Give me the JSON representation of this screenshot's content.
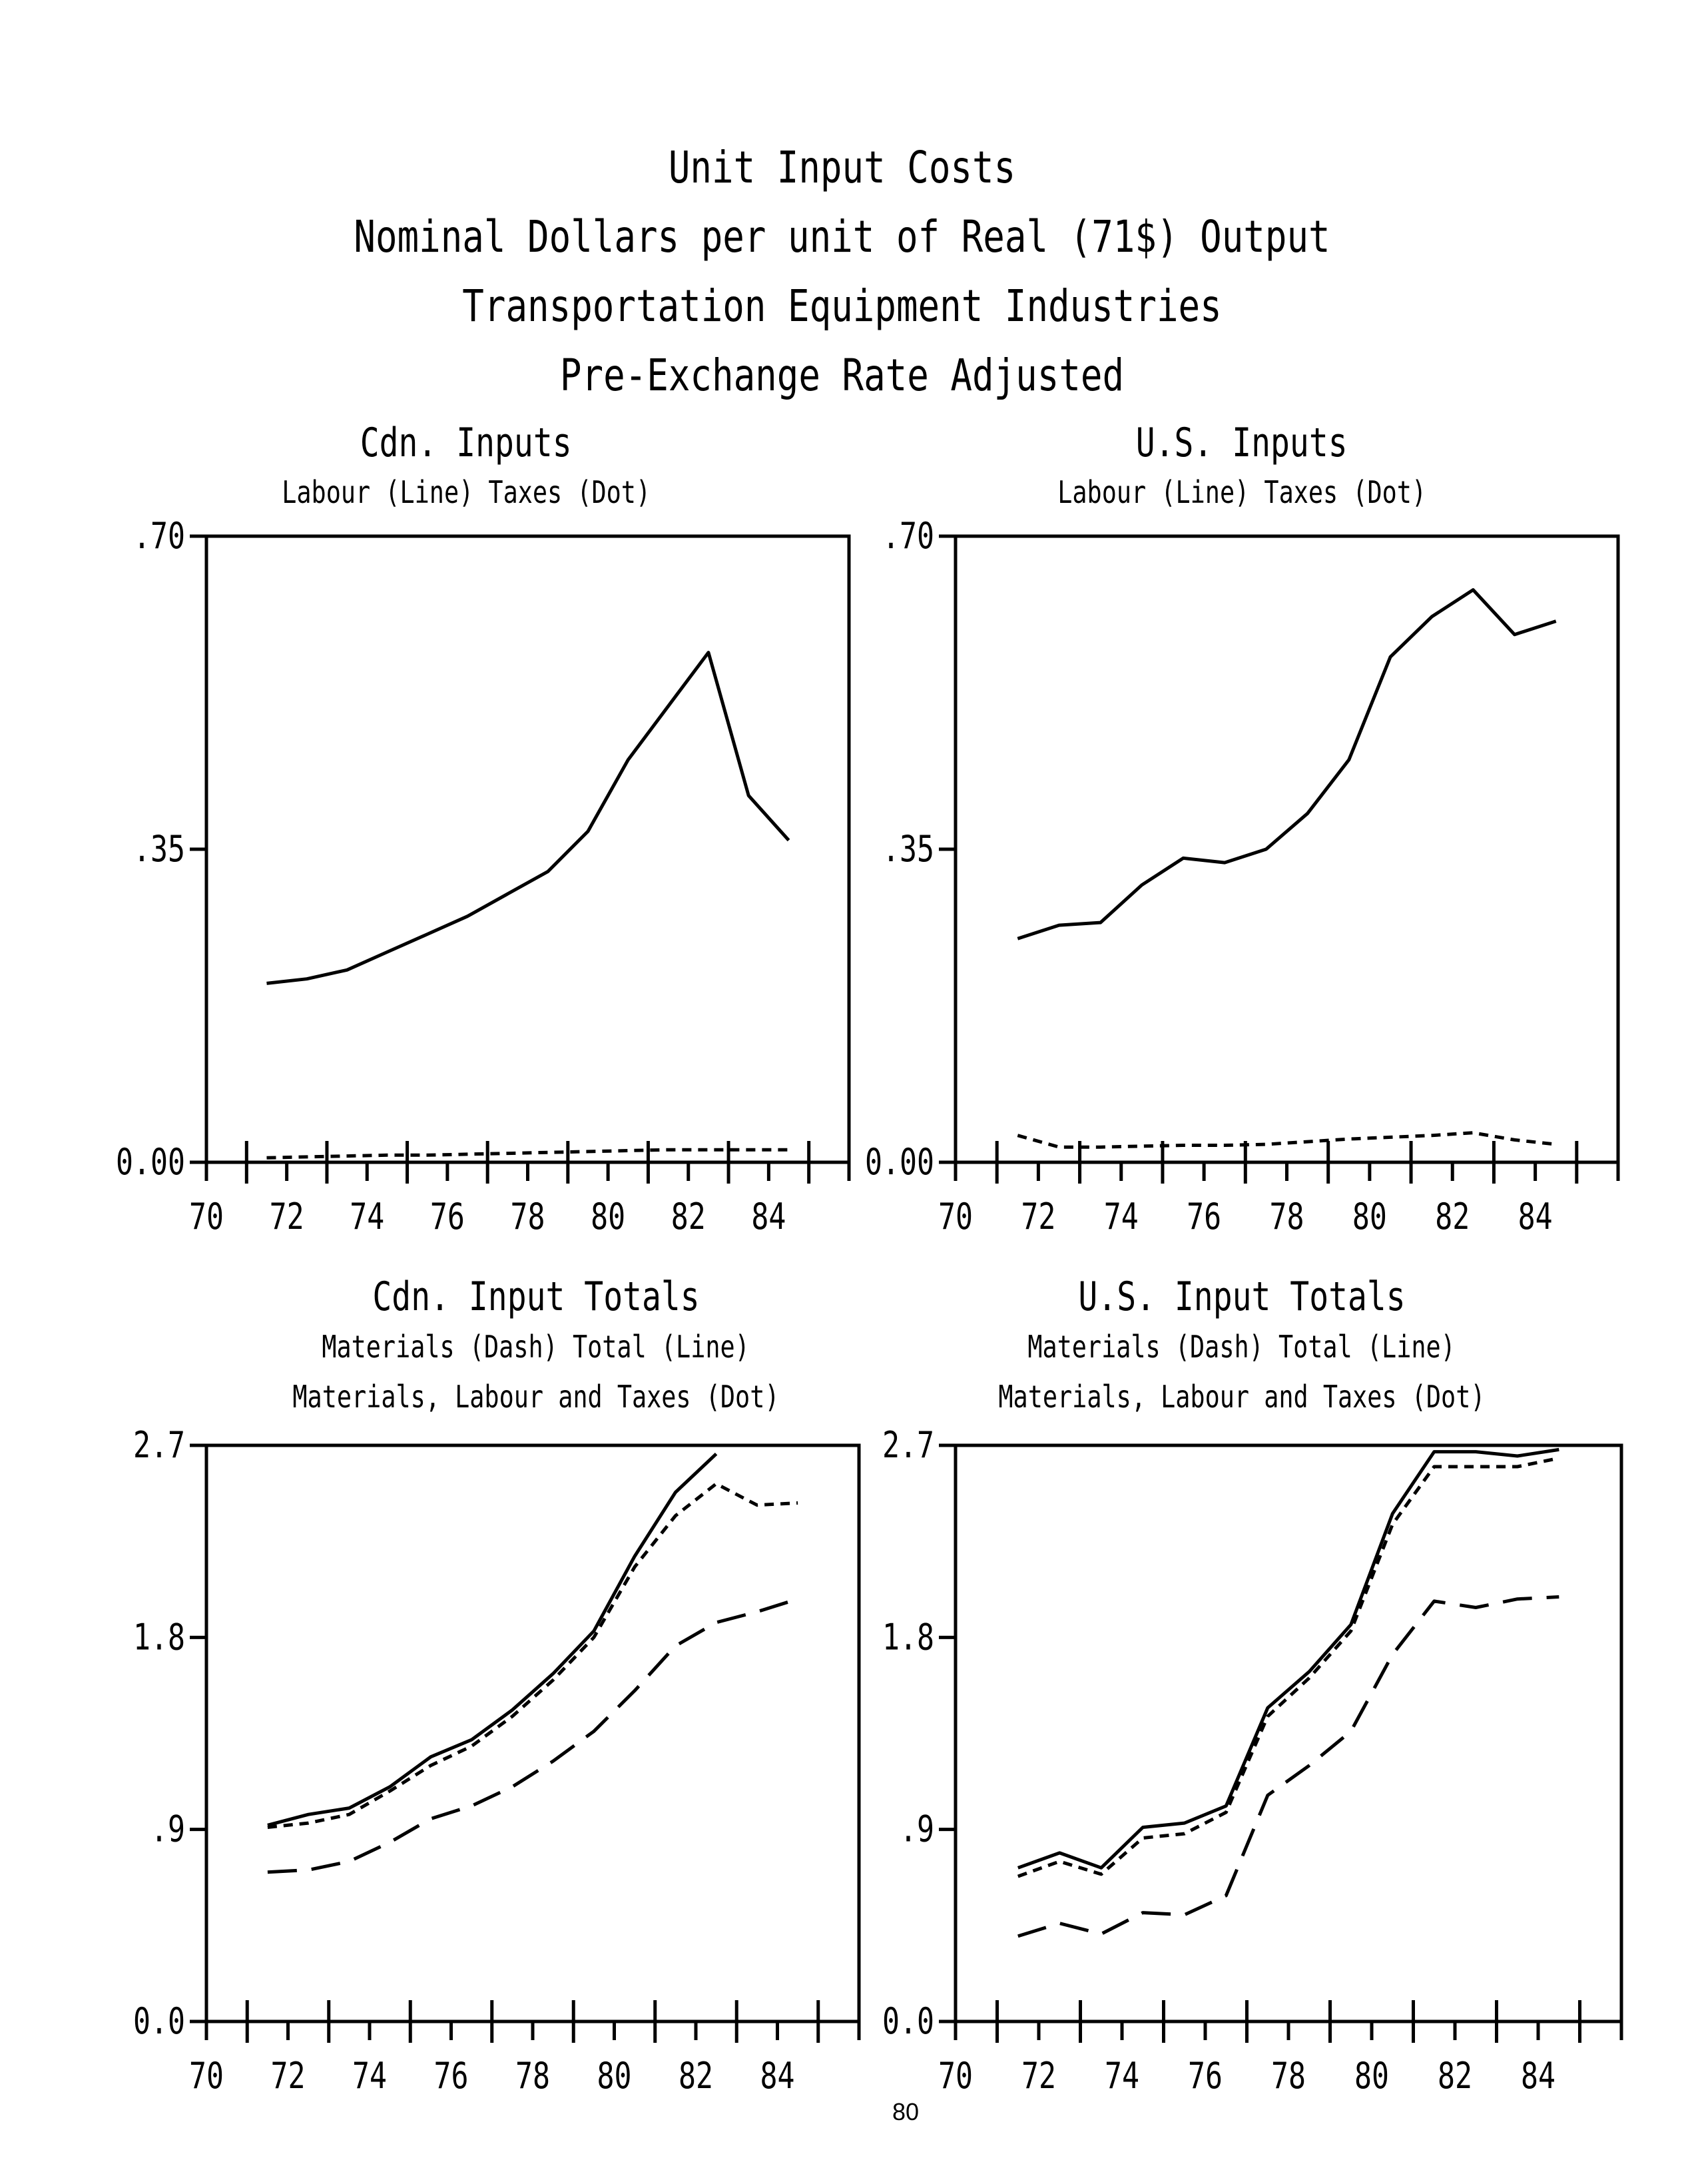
{
  "page": {
    "title_lines": [
      "Unit Input Costs",
      "Nominal Dollars per unit of Real (71$) Output",
      "Transportation Equipment Industries",
      "Pre-Exchange Rate Adjusted"
    ],
    "page_number": "80"
  },
  "chart_data": [
    {
      "type": "line",
      "title": "Cdn. Inputs",
      "subtitle_lines": [
        "Labour (Line)  Taxes (Dot)"
      ],
      "xlim": [
        70,
        86
      ],
      "ylim": [
        0,
        0.7
      ],
      "x_ticks": [
        70,
        72,
        74,
        76,
        78,
        80,
        82,
        84
      ],
      "x_tick_labels": [
        "70",
        "72",
        "74",
        "76",
        "78",
        "80",
        "82",
        "84"
      ],
      "y_ticks": [
        0,
        0.35,
        0.7
      ],
      "y_tick_labels": [
        "0.00",
        ".35",
        ".70"
      ],
      "x": [
        71.5,
        72.5,
        73.5,
        74.5,
        75.5,
        76.5,
        77.5,
        78.5,
        79.5,
        80.5,
        81.5,
        82.5,
        83.5,
        84.5
      ],
      "series": [
        {
          "style": "solid",
          "values": [
            0.2,
            0.205,
            0.215,
            0.235,
            0.255,
            0.275,
            0.3,
            0.325,
            0.37,
            0.45,
            0.51,
            0.57,
            0.41,
            0.36
          ]
        },
        {
          "style": "dotted",
          "values": [
            0.005,
            0.006,
            0.007,
            0.008,
            0.008,
            0.009,
            0.01,
            0.011,
            0.012,
            0.013,
            0.014,
            0.014,
            0.014,
            0.014
          ]
        }
      ]
    },
    {
      "type": "line",
      "title": "U.S. Inputs",
      "subtitle_lines": [
        "Labour (Line)  Taxes (Dot)"
      ],
      "xlim": [
        70,
        86
      ],
      "ylim": [
        0,
        0.7
      ],
      "x_ticks": [
        70,
        72,
        74,
        76,
        78,
        80,
        82,
        84
      ],
      "x_tick_labels": [
        "70",
        "72",
        "74",
        "76",
        "78",
        "80",
        "82",
        "84"
      ],
      "y_ticks": [
        0,
        0.35,
        0.7
      ],
      "y_tick_labels": [
        "0.00",
        ".35",
        ".70"
      ],
      "x": [
        71.5,
        72.5,
        73.5,
        74.5,
        75.5,
        76.5,
        77.5,
        78.5,
        79.5,
        80.5,
        81.5,
        82.5,
        83.5,
        84.5
      ],
      "series": [
        {
          "style": "solid",
          "values": [
            0.25,
            0.265,
            0.268,
            0.31,
            0.34,
            0.335,
            0.35,
            0.39,
            0.45,
            0.565,
            0.61,
            0.64,
            0.59,
            0.605
          ]
        },
        {
          "style": "dotted",
          "values": [
            0.03,
            0.017,
            0.017,
            0.018,
            0.019,
            0.019,
            0.02,
            0.023,
            0.026,
            0.028,
            0.03,
            0.033,
            0.025,
            0.02
          ]
        }
      ]
    },
    {
      "type": "line",
      "title": "Cdn. Input Totals",
      "subtitle_lines": [
        "Materials (Dash)   Total (Line)",
        "Materials, Labour and Taxes (Dot)"
      ],
      "xlim": [
        70,
        86
      ],
      "ylim": [
        0,
        2.7
      ],
      "x_ticks": [
        70,
        72,
        74,
        76,
        78,
        80,
        82,
        84
      ],
      "x_tick_labels": [
        "70",
        "72",
        "74",
        "76",
        "78",
        "80",
        "82",
        "84"
      ],
      "y_ticks": [
        0,
        0.9,
        1.8,
        2.7
      ],
      "y_tick_labels": [
        "0.0",
        ".9",
        "1.8",
        "2.7"
      ],
      "x": [
        71.5,
        72.5,
        73.5,
        74.5,
        75.5,
        76.5,
        77.5,
        78.5,
        79.5,
        80.5,
        81.5,
        82.5,
        83.5,
        84.5
      ],
      "series": [
        {
          "style": "solid",
          "values": [
            0.92,
            0.97,
            1.0,
            1.1,
            1.24,
            1.32,
            1.46,
            1.63,
            1.83,
            2.18,
            2.48,
            2.66,
            null,
            null
          ]
        },
        {
          "style": "dotted",
          "values": [
            0.91,
            0.93,
            0.97,
            1.08,
            1.2,
            1.29,
            1.43,
            1.6,
            1.8,
            2.13,
            2.37,
            2.52,
            2.42,
            2.43
          ]
        },
        {
          "style": "dashed",
          "values": [
            0.7,
            0.71,
            0.75,
            0.84,
            0.95,
            1.01,
            1.1,
            1.22,
            1.36,
            1.55,
            1.76,
            1.87,
            1.92,
            1.98
          ]
        }
      ]
    },
    {
      "type": "line",
      "title": "U.S. Input Totals",
      "subtitle_lines": [
        "Materials (Dash)   Total (Line)",
        "Materials, Labour and Taxes (Dot)"
      ],
      "xlim": [
        70,
        86
      ],
      "ylim": [
        0,
        2.7
      ],
      "x_ticks": [
        70,
        72,
        74,
        76,
        78,
        80,
        82,
        84
      ],
      "x_tick_labels": [
        "70",
        "72",
        "74",
        "76",
        "78",
        "80",
        "82",
        "84"
      ],
      "y_ticks": [
        0,
        0.9,
        1.8,
        2.7
      ],
      "y_tick_labels": [
        "0.0",
        ".9",
        "1.8",
        "2.7"
      ],
      "x": [
        71.5,
        72.5,
        73.5,
        74.5,
        75.5,
        76.5,
        77.5,
        78.5,
        79.5,
        80.5,
        81.5,
        82.5,
        83.5,
        84.5
      ],
      "series": [
        {
          "style": "solid",
          "values": [
            0.72,
            0.79,
            0.72,
            0.91,
            0.93,
            1.01,
            1.47,
            1.64,
            1.86,
            2.38,
            2.67,
            2.67,
            2.65,
            2.68
          ]
        },
        {
          "style": "dotted",
          "values": [
            0.68,
            0.75,
            0.69,
            0.86,
            0.88,
            0.98,
            1.43,
            1.61,
            1.83,
            2.33,
            2.6,
            2.6,
            2.6,
            2.64
          ]
        },
        {
          "style": "dashed",
          "values": [
            0.4,
            0.46,
            0.41,
            0.51,
            0.5,
            0.59,
            1.06,
            1.2,
            1.36,
            1.72,
            1.97,
            1.94,
            1.98,
            1.99
          ]
        }
      ]
    }
  ]
}
